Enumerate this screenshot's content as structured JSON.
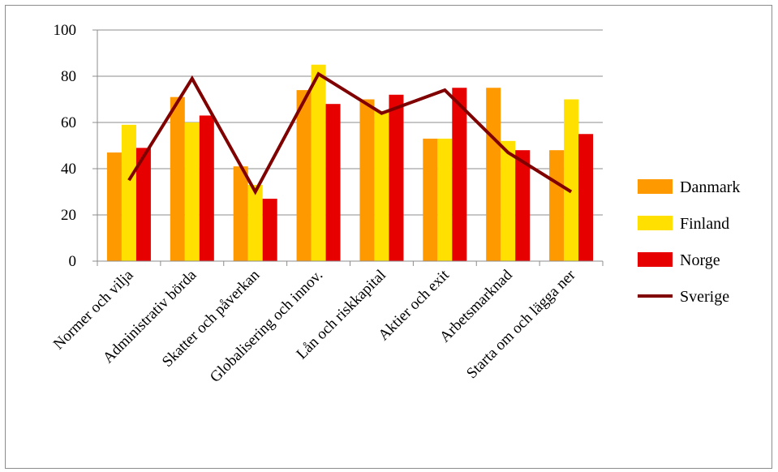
{
  "chart_data": {
    "type": "bar",
    "categories": [
      "Normer och vilja",
      "Administrativ börda",
      "Skatter och påverkan",
      "Globalisering och innov.",
      "Lån och riskkapital",
      "Aktier och exit",
      "Arbetsmarknad",
      "Starta om och lägga ner"
    ],
    "series": [
      {
        "name": "Danmark",
        "kind": "bar",
        "color": "#ff9900",
        "values": [
          47,
          71,
          41,
          74,
          70,
          53,
          75,
          48
        ]
      },
      {
        "name": "Finland",
        "kind": "bar",
        "color": "#ffe000",
        "values": [
          59,
          60,
          33,
          85,
          65,
          53,
          52,
          70
        ]
      },
      {
        "name": "Norge",
        "kind": "bar",
        "color": "#e60000",
        "values": [
          49,
          63,
          27,
          68,
          72,
          75,
          48,
          55
        ]
      },
      {
        "name": "Sverige",
        "kind": "line",
        "color": "#800000",
        "values": [
          35,
          79,
          30,
          81,
          64,
          74,
          47,
          30
        ]
      }
    ],
    "ylim": [
      0,
      100
    ],
    "yticks": [
      "0",
      "20",
      "40",
      "60",
      "80",
      "100"
    ],
    "grid": true,
    "legend_position": "right"
  }
}
